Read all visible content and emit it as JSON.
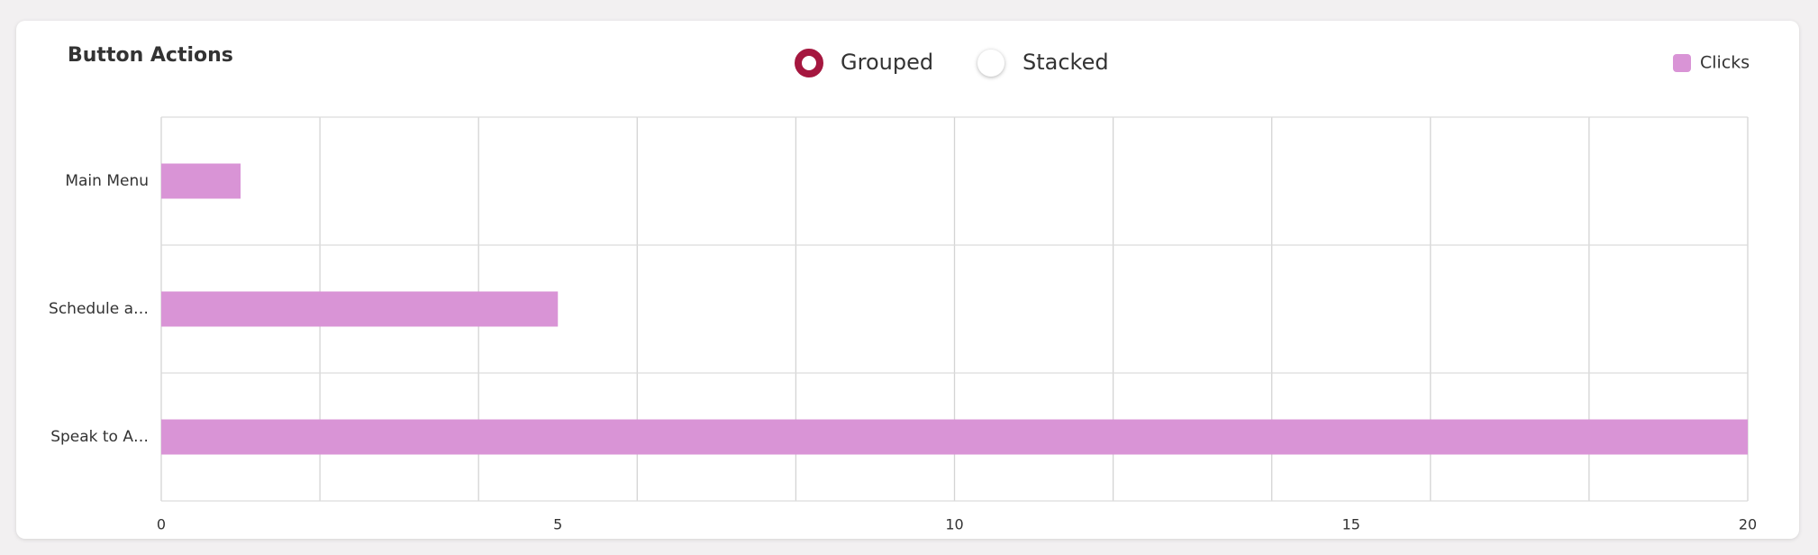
{
  "chart_data": {
    "type": "barh",
    "title": "Button Actions",
    "modes": [
      "Grouped",
      "Stacked"
    ],
    "categories": [
      "Main Menu",
      "Schedule a…",
      "Speak to A…"
    ],
    "series": [
      {
        "name": "Clicks",
        "color": "#d994d6",
        "values": [
          1,
          5,
          20
        ]
      }
    ],
    "xlim": [
      0,
      20
    ],
    "xticks": [
      0,
      5,
      10,
      15,
      20
    ],
    "xgrid": [
      0,
      2,
      4,
      6,
      8,
      10,
      12,
      14,
      16,
      18,
      20
    ],
    "grid": true,
    "legend": "top-right"
  }
}
